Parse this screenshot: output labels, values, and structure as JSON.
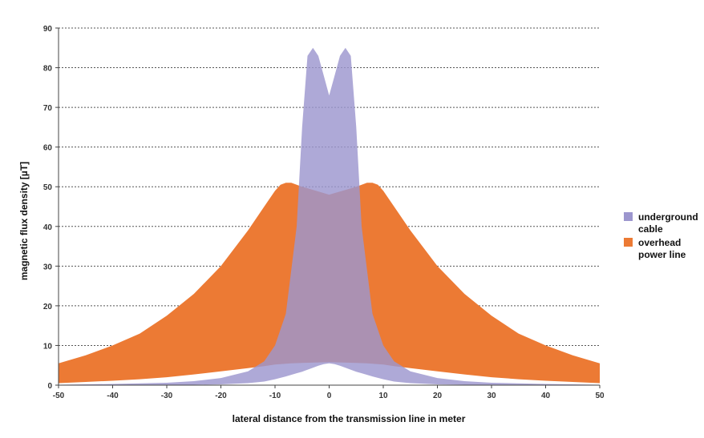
{
  "chart_data": {
    "type": "area",
    "title": "",
    "xlabel": "lateral distance from the transmission line in meter",
    "ylabel": "magnetic flux density [µT]",
    "xlim": [
      -50,
      50
    ],
    "ylim": [
      0,
      90
    ],
    "x_ticks": [
      -50,
      -40,
      -30,
      -20,
      -10,
      0,
      10,
      20,
      30,
      40,
      50
    ],
    "y_ticks": [
      0,
      10,
      20,
      30,
      40,
      50,
      60,
      70,
      80,
      90
    ],
    "grid": "horizontal-dashed",
    "legend_position": "right",
    "series": [
      {
        "name": "overhead power line",
        "color": "#ec7a34",
        "band": true,
        "x": [
          -50,
          -45,
          -40,
          -35,
          -30,
          -25,
          -20,
          -15,
          -12,
          -10,
          -9,
          -8,
          -7,
          -5,
          0,
          5,
          7,
          8,
          9,
          10,
          12,
          15,
          20,
          25,
          30,
          35,
          40,
          45,
          50
        ],
        "upper": [
          5.5,
          7.5,
          10,
          13,
          17.5,
          23,
          30,
          39,
          45,
          49,
          50.5,
          51,
          51,
          50,
          48,
          50,
          51,
          51,
          50.5,
          49,
          45,
          39,
          30,
          23,
          17.5,
          13,
          10,
          7.5,
          5.5
        ],
        "lower": [
          0.5,
          0.8,
          1.1,
          1.5,
          2,
          2.7,
          3.5,
          4.3,
          4.8,
          5.2,
          5.3,
          5.4,
          5.5,
          5.6,
          5.8,
          5.6,
          5.5,
          5.4,
          5.3,
          5.2,
          4.8,
          4.3,
          3.5,
          2.7,
          2,
          1.5,
          1.1,
          0.8,
          0.5
        ]
      },
      {
        "name": "underground cable",
        "color": "#9c96ce",
        "band": true,
        "x": [
          -50,
          -40,
          -30,
          -25,
          -20,
          -15,
          -12,
          -10,
          -8,
          -6,
          -5,
          -4,
          -3,
          -2,
          -1,
          0,
          1,
          2,
          3,
          4,
          5,
          6,
          8,
          10,
          12,
          15,
          20,
          25,
          30,
          40,
          50
        ],
        "upper": [
          0.1,
          0.3,
          0.6,
          1,
          1.8,
          3.5,
          6,
          10,
          18,
          40,
          65,
          83,
          85,
          83,
          78,
          73,
          78,
          83,
          85,
          83,
          65,
          40,
          18,
          10,
          6,
          3.5,
          1.8,
          1,
          0.6,
          0.3,
          0.1
        ],
        "lower": [
          0,
          0,
          0.05,
          0.1,
          0.2,
          0.5,
          0.9,
          1.5,
          2.2,
          3,
          3.4,
          3.9,
          4.4,
          4.9,
          5.3,
          5.5,
          5.3,
          4.9,
          4.4,
          3.9,
          3.4,
          3,
          2.2,
          1.5,
          0.9,
          0.5,
          0.2,
          0.1,
          0.05,
          0,
          0
        ]
      }
    ],
    "legend": [
      {
        "lines": [
          "underground",
          "cable"
        ],
        "color": "#9c96ce"
      },
      {
        "lines": [
          "overhead",
          "power line"
        ],
        "color": "#ec7a34"
      }
    ]
  }
}
